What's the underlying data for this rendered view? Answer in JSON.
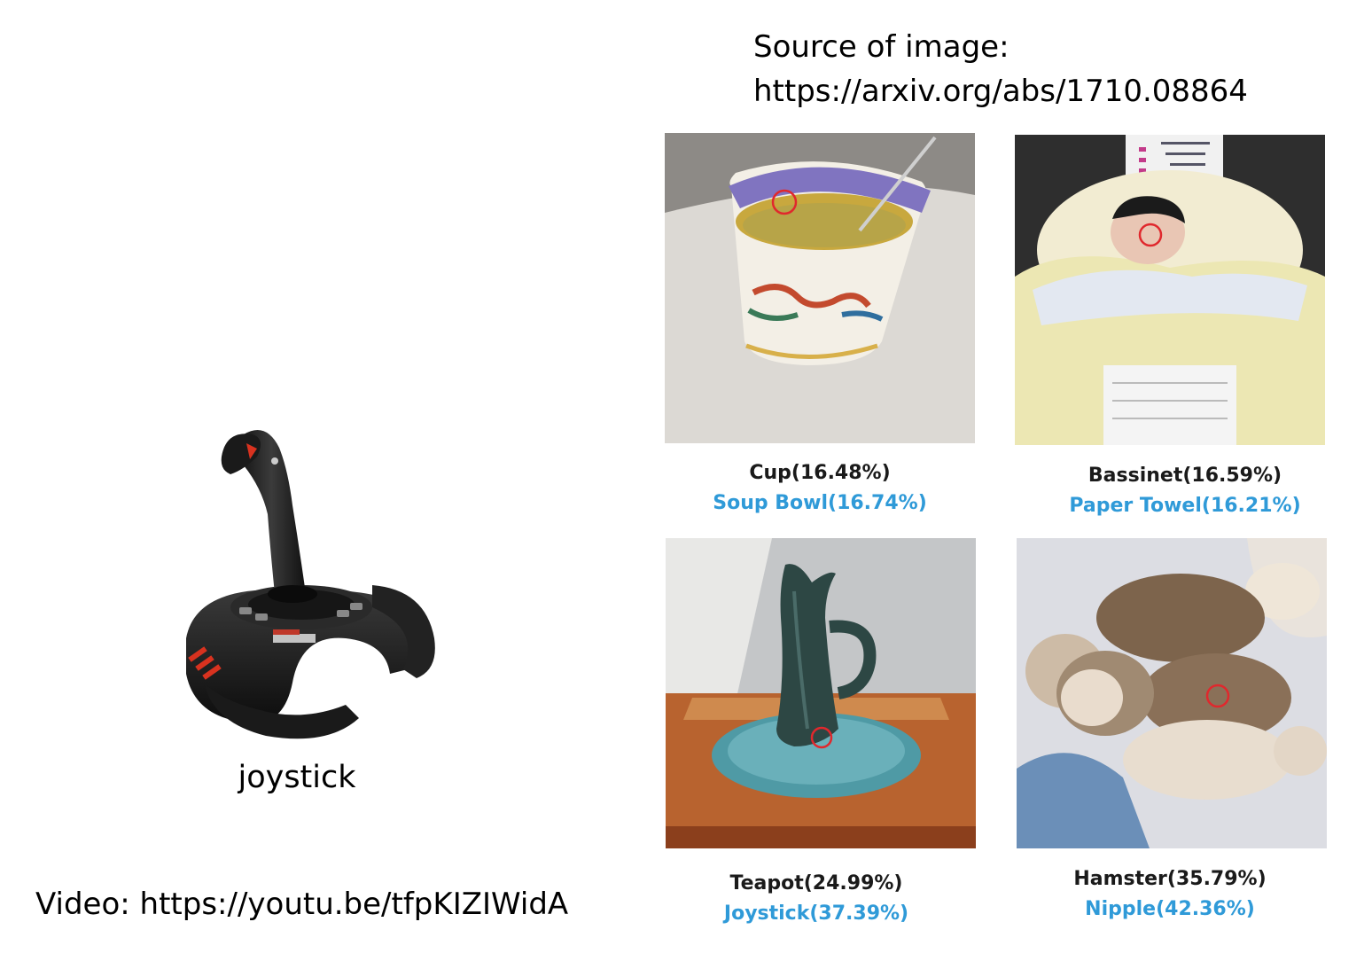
{
  "source": {
    "line1": "Source of image:",
    "line2": "https://arxiv.org/abs/1710.08864"
  },
  "left": {
    "object_label": "joystick",
    "video_text": "Video: https://youtu.be/tfpKIZIWidA"
  },
  "examples": [
    {
      "original": "Cup(16.48%)",
      "adversarial": "Soup Bowl(16.74%)"
    },
    {
      "original": "Bassinet(16.59%)",
      "adversarial": "Paper Towel(16.21%)"
    },
    {
      "original": "Teapot(24.99%)",
      "adversarial": "Joystick(37.39%)"
    },
    {
      "original": "Hamster(35.79%)",
      "adversarial": "Nipple(42.36%)"
    }
  ],
  "colors": {
    "adversarial_label": "#2f9ad8",
    "pixel_marker": "#e0282d"
  }
}
